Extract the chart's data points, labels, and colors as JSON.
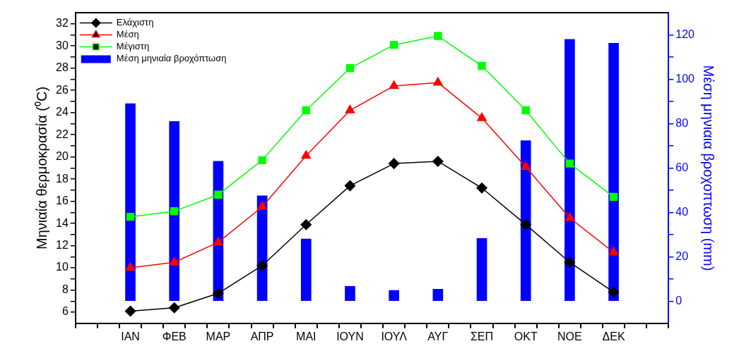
{
  "chart_data": {
    "type": "line",
    "categories": [
      "ΙΑΝ",
      "ΦΕΒ",
      "ΜΑΡ",
      "ΑΠΡ",
      "ΜΑΙ",
      "ΙΟΥΝ",
      "ΙΟΥΛ",
      "ΑΥΓ",
      "ΣΕΠ",
      "ΟΚΤ",
      "ΝΟΕ",
      "ΔΕΚ"
    ],
    "ylabel": "Μηνιαία θερμοκρασία (⁰C)",
    "y2label": "Μέση μηνιαια βροχοπτωση (mm)",
    "ylim": [
      5,
      33
    ],
    "yticks": [
      6,
      {
        "value": 7,
        "label": null
      },
      8,
      {
        "value": 9,
        "label": null
      },
      10,
      {
        "value": 11,
        "label": null
      },
      12,
      {
        "value": 13,
        "label": null
      },
      14,
      {
        "value": 15,
        "label": null
      },
      16,
      {
        "value": 17,
        "label": null
      },
      18,
      {
        "value": 19,
        "label": null
      },
      20,
      {
        "value": 21,
        "label": null
      },
      22,
      {
        "value": 23,
        "label": null
      },
      24,
      {
        "value": 25,
        "label": null
      },
      26,
      {
        "value": 27,
        "label": null
      },
      28,
      {
        "value": 29,
        "label": null
      },
      30,
      {
        "value": 31,
        "label": null
      },
      32
    ],
    "y2lim": [
      -10,
      130
    ],
    "y2ticks": [
      0,
      {
        "value": 10,
        "label": null
      },
      20,
      {
        "value": 30,
        "label": null
      },
      40,
      {
        "value": 50,
        "label": null
      },
      60,
      {
        "value": 70,
        "label": null
      },
      80,
      {
        "value": 90,
        "label": null
      },
      100,
      {
        "value": 110,
        "label": null
      },
      120
    ],
    "grid": false,
    "legend": "top left",
    "series": [
      {
        "name": "Ελάχιστη",
        "marker": "diamond",
        "color": "#000000",
        "values": [
          6.1,
          6.4,
          7.7,
          10.2,
          13.9,
          17.4,
          19.4,
          19.6,
          17.2,
          13.9,
          10.5,
          7.8
        ]
      },
      {
        "name": "Μέση",
        "marker": "triangle",
        "color": "#ff0000",
        "values": [
          10.0,
          10.5,
          12.3,
          15.5,
          20.1,
          24.2,
          26.4,
          26.7,
          23.5,
          19.1,
          14.5,
          11.4
        ]
      },
      {
        "name": "Μέγιστη",
        "marker": "square",
        "color": "#00ff00",
        "values": [
          14.6,
          15.1,
          16.6,
          19.7,
          24.2,
          28.0,
          30.1,
          30.9,
          28.2,
          24.2,
          19.4,
          16.4
        ]
      },
      {
        "name": "Μέση μηνιαία βροχόπτωση",
        "type": "bar",
        "axis": "y2",
        "color": "#0000ff",
        "values": [
          89,
          81,
          63,
          47.5,
          28,
          6.7,
          4.8,
          5.4,
          28.3,
          72.3,
          118,
          116.2
        ]
      }
    ]
  }
}
